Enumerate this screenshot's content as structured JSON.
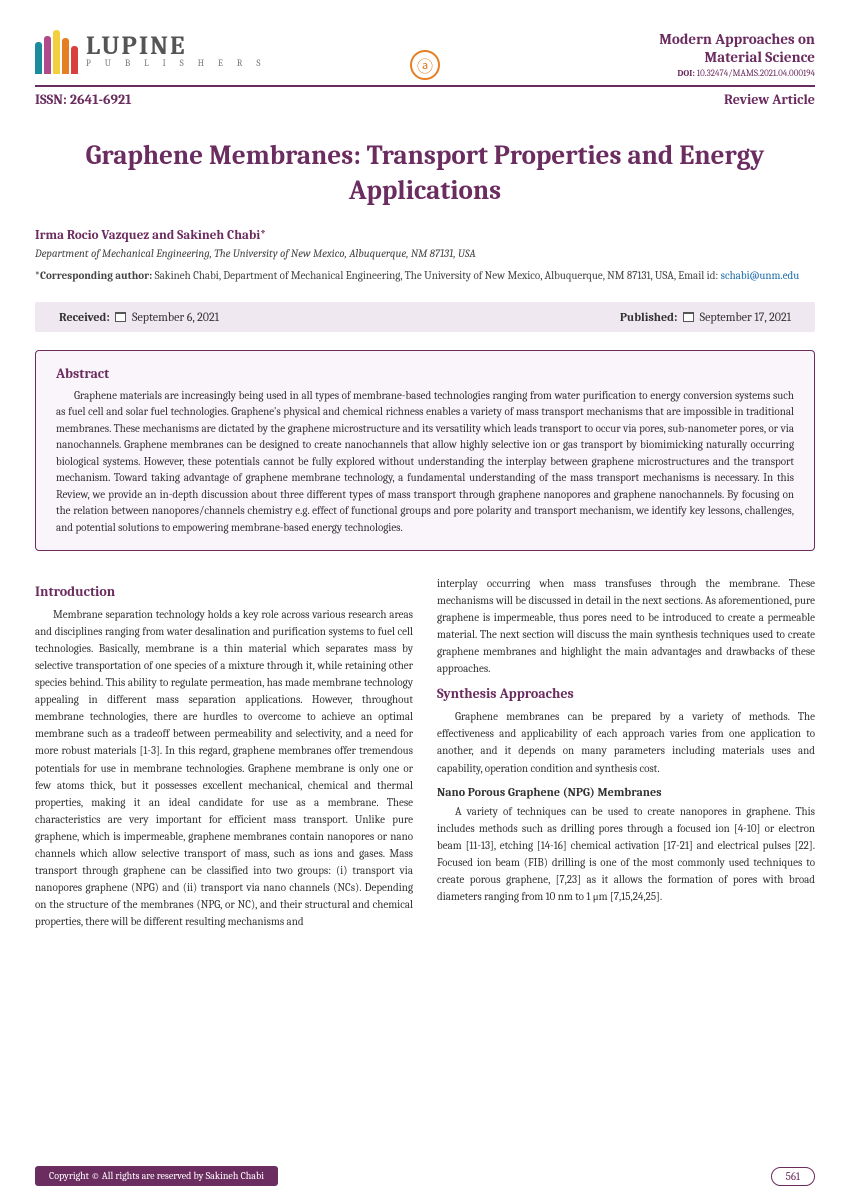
{
  "header": {
    "publisher": "LUPINE",
    "publisher_sub": "P U B L I S H E R S",
    "journal_line1": "Modern Approaches on",
    "journal_line2": "Material Science",
    "doi_label": "DOI:",
    "doi": "10.32474/MAMS.2021.04.000194",
    "issn": "ISSN: 2641-6921",
    "article_type": "Review Article",
    "oa_symbol": "ⓐ"
  },
  "title": "Graphene Membranes: Transport Properties and Energy Applications",
  "authors": "Irma Rocio Vazquez and Sakineh Chabi*",
  "affiliation": "Department of Mechanical Engineering, The University of New Mexico, Albuquerque, NM 87131, USA",
  "corresponding_label": "*Corresponding author:",
  "corresponding_text": " Sakineh Chabi, Department of Mechanical Engineering, The University of New Mexico, Albuquerque, NM 87131, USA, Email id: ",
  "corresponding_email": "schabi@unm.edu",
  "dates": {
    "received_label": "Received:",
    "received": " September 6, 2021",
    "published_label": "Published:",
    "published": " September 17, 2021"
  },
  "abstract": {
    "heading": "Abstract",
    "text": "Graphene materials are increasingly being used in all types of membrane-based technologies ranging from water purification to energy conversion systems such as fuel cell and solar fuel technologies. Graphene's physical and chemical richness enables a variety of mass transport mechanisms that are impossible in traditional membranes. These mechanisms are dictated by the graphene microstructure and its versatility which leads transport to occur via pores, sub-nanometer pores, or via nanochannels. Graphene membranes can be designed to create nanochannels that allow highly selective ion or gas transport by biomimicking naturally occurring biological systems. However, these potentials cannot be fully explored without understanding the interplay between graphene microstructures and the transport mechanism. Toward taking advantage of graphene membrane technology, a fundamental understanding of the mass transport mechanisms is necessary. In this Review, we provide an in-depth discussion about three different types of mass transport through graphene nanopores and graphene nanochannels. By focusing on the relation between nanopores/channels chemistry e.g. effect of functional groups and pore polarity and transport mechanism, we identify key lessons, challenges, and potential solutions to empowering membrane-based energy technologies."
  },
  "introduction": {
    "heading": "Introduction",
    "text": "Membrane separation technology holds a key role across various research areas and disciplines ranging from water desalination and purification systems to fuel cell technologies. Basically, membrane is a thin material which separates mass by selective transportation of one species of a mixture through it, while retaining other species behind. This ability to regulate permeation, has made membrane technology appealing in different mass separation applications. However, throughout membrane technologies, there are hurdles to overcome to achieve an optimal membrane such as a tradeoff between permeability and selectivity, and a need for more robust materials [1-3]. In this regard, graphene membranes offer tremendous potentials for use in membrane technologies. Graphene membrane is only one or few atoms thick, but it possesses excellent mechanical, chemical and thermal properties, making it an ideal candidate for use as a membrane. These characteristics are very important for efficient mass transport. Unlike pure graphene, which is impermeable, graphene membranes contain nanopores or nano channels which allow selective transport of mass, such as ions and gases. Mass transport through graphene can be classified into two groups: (i) transport via nanopores graphene (NPG) and (ii) transport via nano channels (NCs). Depending on the structure of the membranes (NPG, or NC), and their structural and chemical properties, there will be different resulting mechanisms and"
  },
  "col2_intro_continued": "interplay occurring when mass transfuses through the membrane. These mechanisms will be discussed in detail in the next sections. As aforementioned, pure graphene is impermeable, thus pores need to be introduced to create a permeable material. The next section will discuss the main synthesis techniques used to create graphene membranes and highlight the main advantages and drawbacks of these approaches.",
  "synthesis": {
    "heading": "Synthesis Approaches",
    "text": "Graphene membranes can be prepared by a variety of methods. The effectiveness and applicability of each approach varies from one application to another, and it depends on many parameters including materials uses and capability, operation condition and synthesis cost."
  },
  "npg": {
    "heading": "Nano Porous Graphene (NPG) Membranes",
    "text": "A variety of techniques can be used to create nanopores in graphene. This includes methods such as drilling pores through a focused ion [4-10] or electron beam [11-13], etching [14-16] chemical activation [17-21] and electrical pulses [22]. Focused ion beam (FIB) drilling is one of the most commonly used techniques to create porous graphene, [7,23] as it allows the formation of pores with broad diameters ranging from 10 nm to 1 μm [7,15,24,25]."
  },
  "footer": {
    "copyright": "Copyright © All rights are reserved by Sakineh Chabi",
    "page": "561"
  }
}
